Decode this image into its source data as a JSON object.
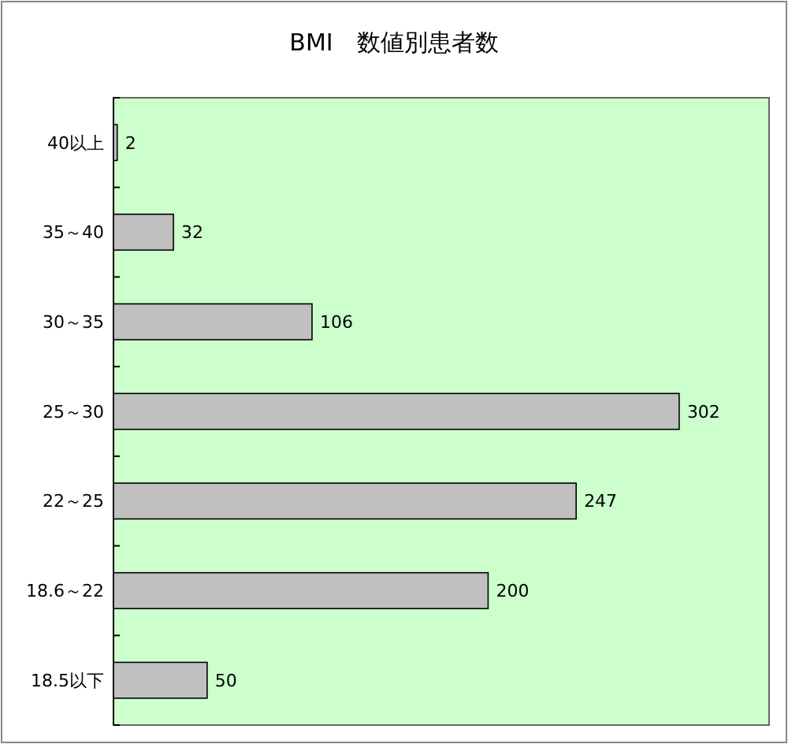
{
  "chart_data": {
    "type": "bar",
    "orientation": "horizontal",
    "title": "BMI　数値別患者数",
    "categories": [
      "40以上",
      "35～40",
      "30～35",
      "25～30",
      "22～25",
      "18.6～22",
      "18.5以下"
    ],
    "values": [
      2,
      32,
      106,
      302,
      247,
      200,
      50
    ],
    "color": "#c0c0c0",
    "xlim": [
      0,
      350
    ],
    "tick_labels": "y",
    "data_labels": true
  }
}
